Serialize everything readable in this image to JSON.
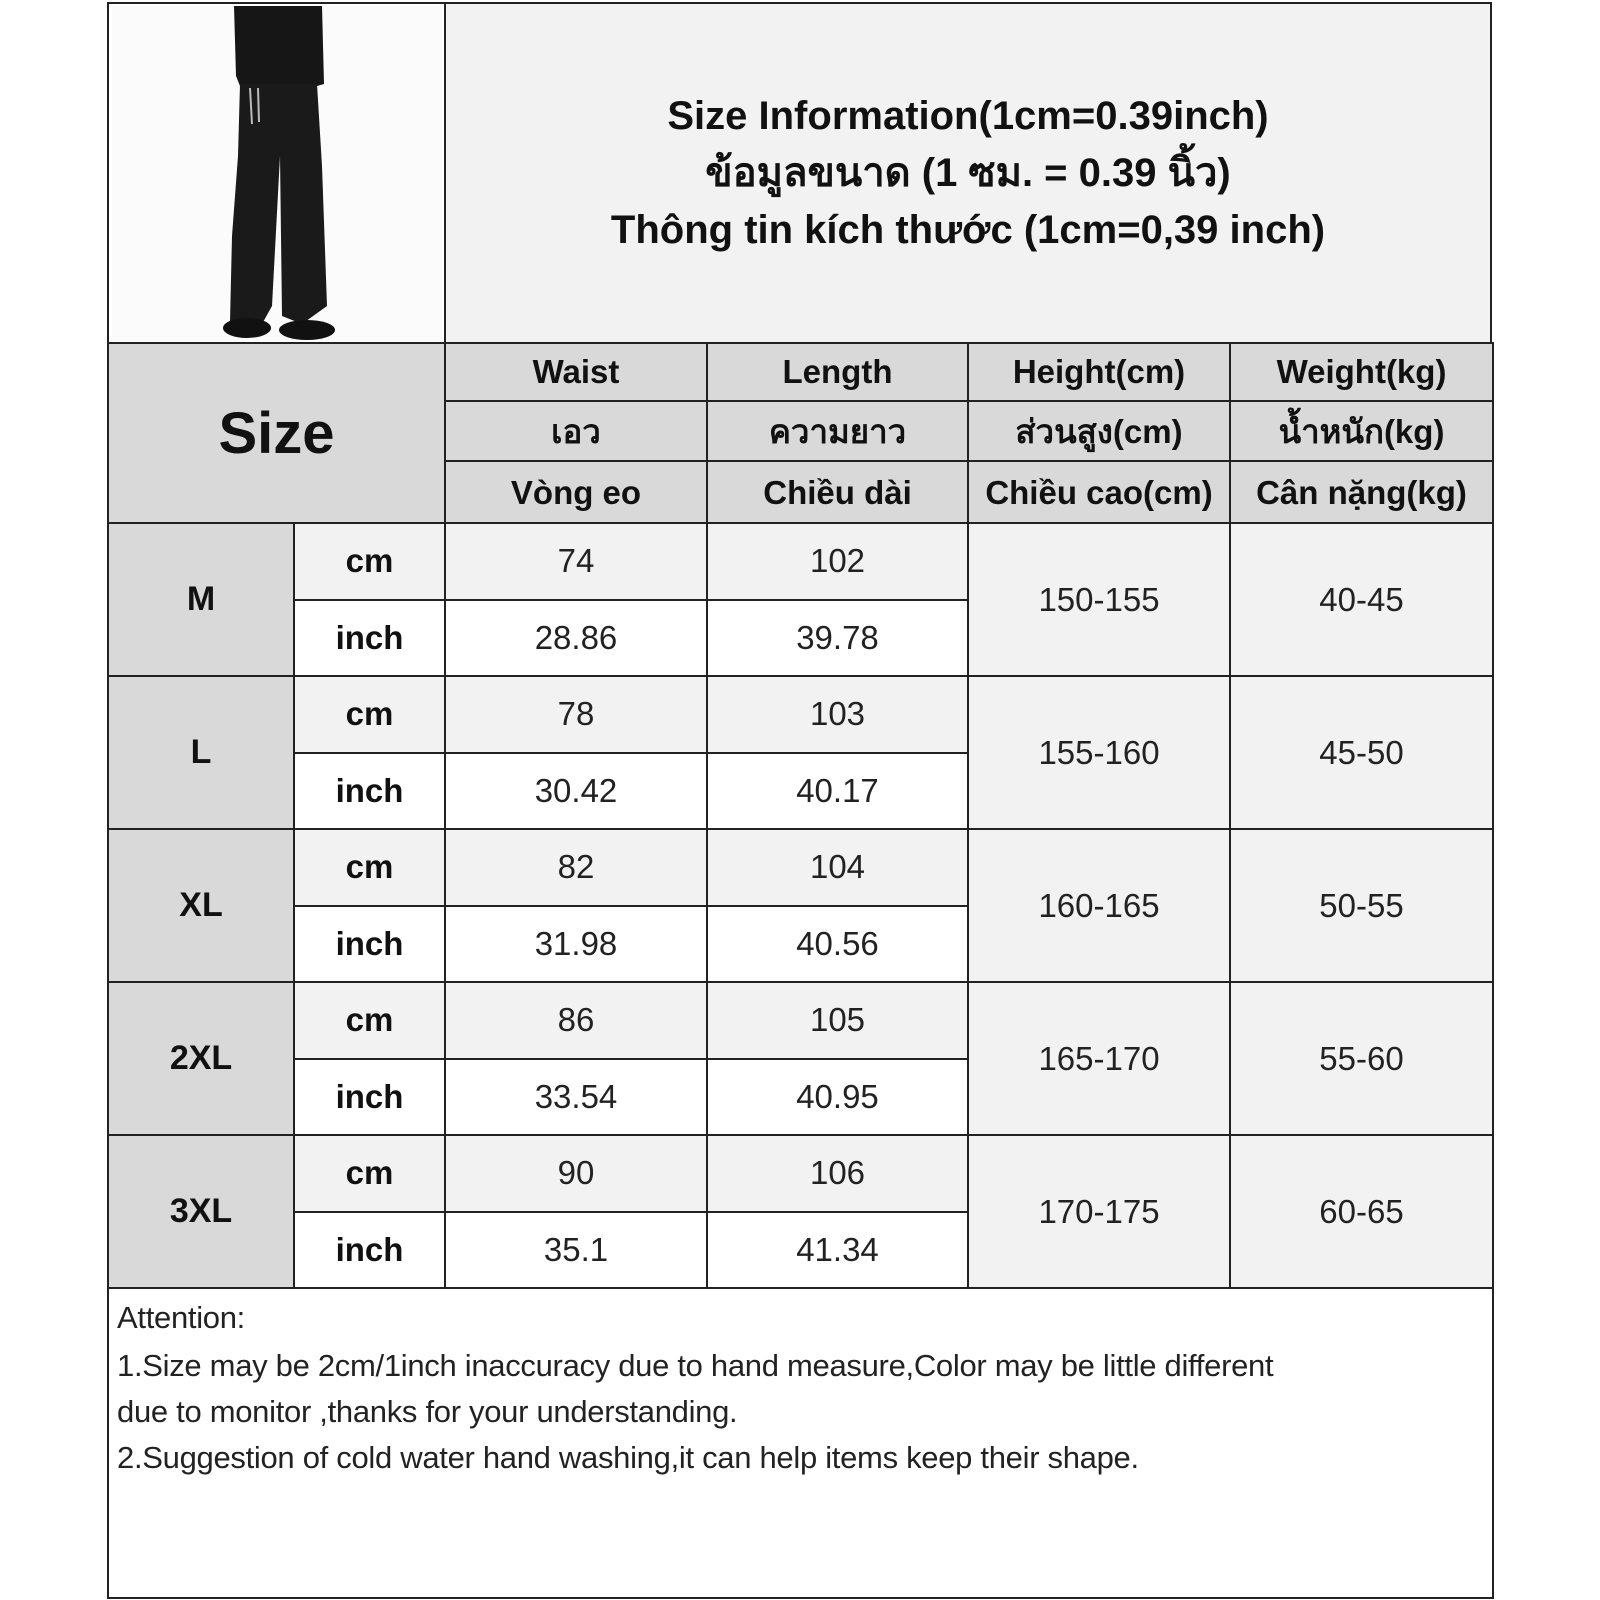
{
  "title": {
    "line_en": "Size Information(1cm=0.39inch)",
    "line_th": "ข้อมูลขนาด (1 ซม. = 0.39 นิ้ว)",
    "line_vi": "Thông tin kích thước (1cm=0,39 inch)"
  },
  "header": {
    "size_label": "Size",
    "columns": [
      {
        "en": "Waist",
        "th": "เอว",
        "vi": "Vòng eo"
      },
      {
        "en": "Length",
        "th": "ความยาว",
        "vi": "Chiều dài"
      },
      {
        "en": "Height(cm)",
        "th": "ส่วนสูง(cm)",
        "vi": "Chiều cao(cm)"
      },
      {
        "en": "Weight(kg)",
        "th": "น้ำหนัก(kg)",
        "vi": "Cân nặng(kg)"
      }
    ]
  },
  "units": {
    "cm": "cm",
    "inch": "inch"
  },
  "rows": [
    {
      "size": "M",
      "waist_cm": "74",
      "length_cm": "102",
      "waist_in": "28.86",
      "length_in": "39.78",
      "height": "150-155",
      "weight": "40-45"
    },
    {
      "size": "L",
      "waist_cm": "78",
      "length_cm": "103",
      "waist_in": "30.42",
      "length_in": "40.17",
      "height": "155-160",
      "weight": "45-50"
    },
    {
      "size": "XL",
      "waist_cm": "82",
      "length_cm": "104",
      "waist_in": "31.98",
      "length_in": "40.56",
      "height": "160-165",
      "weight": "50-55"
    },
    {
      "size": "2XL",
      "waist_cm": "86",
      "length_cm": "105",
      "waist_in": "33.54",
      "length_in": "40.95",
      "height": "165-170",
      "weight": "55-60"
    },
    {
      "size": "3XL",
      "waist_cm": "90",
      "length_cm": "106",
      "waist_in": "35.1",
      "length_in": "41.34",
      "height": "170-175",
      "weight": "60-65"
    }
  ],
  "attention": {
    "heading": "Attention:",
    "line1": "1.Size may be 2cm/1inch inaccuracy due to hand measure,Color may be little different",
    "line2": "due to monitor ,thanks for your understanding.",
    "line3": "2.Suggestion of cold water hand washing,it can help items keep their shape."
  },
  "colors": {
    "header_bg": "#d9d9d9",
    "cell_gray": "#f2f2f2",
    "border": "#222222"
  }
}
